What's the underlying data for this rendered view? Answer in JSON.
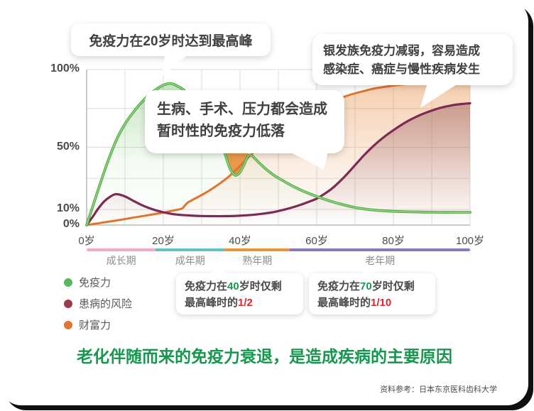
{
  "bubbles": {
    "peak": {
      "text": "免疫力在20岁时达到最高峰"
    },
    "senior": {
      "line1": "银发族免疫力减弱，容易造成",
      "line2": "感染症、癌症与慢性疾病发生"
    },
    "temporary": {
      "line1": "生病、手术、压力都会造成",
      "line2": "暂时性的免疫力低落"
    }
  },
  "axis": {
    "y_ticks": [
      "100%",
      "50%",
      "10%",
      "0%"
    ],
    "x_ticks": [
      "0岁",
      "20岁",
      "40岁",
      "60岁",
      "80岁",
      "100岁"
    ]
  },
  "periods": [
    {
      "label": "成长期",
      "from": 0,
      "to": 18,
      "color": "#f2a8c6"
    },
    {
      "label": "成年期",
      "from": 18,
      "to": 36,
      "color": "#5bc6c8"
    },
    {
      "label": "熟年期",
      "from": 36,
      "to": 53,
      "color": "#ef913c"
    },
    {
      "label": "老年期",
      "from": 53,
      "to": 100,
      "color": "#8679c0"
    }
  ],
  "legend": [
    {
      "label": "免疫力",
      "color": "#5cb85c"
    },
    {
      "label": "患病的风险",
      "color": "#9e3a4e"
    },
    {
      "label": "财富力",
      "color": "#e07733"
    }
  ],
  "callouts": [
    {
      "parts": [
        "免疫力在",
        "40",
        "岁时仅剩"
      ],
      "line2": [
        "最高峰时的",
        "1/2"
      ]
    },
    {
      "parts": [
        "免疫力在",
        "70",
        "岁时仅剩"
      ],
      "line2": [
        "最高峰时的",
        "1/10"
      ]
    }
  ],
  "headline": "老化伴随而来的免疫力衰退，是造成疾病的主要原因",
  "source": "资料参考：日本东京医科齿科大学",
  "colors": {
    "headline_green": "#13984d",
    "accent_green": "#169a4d",
    "accent_red": "#e1242a",
    "card_shadow": "#0f0f0f"
  },
  "chart_data": {
    "type": "line",
    "x_unit": "岁",
    "x_range": [
      0,
      100
    ],
    "y_range": [
      0,
      100
    ],
    "x_tick_values": [
      0,
      20,
      40,
      60,
      80,
      100
    ],
    "y_tick_values": [
      100,
      50,
      10,
      0
    ],
    "grid": true,
    "x_gridlines_every": 10,
    "y_gridlines_pct": [
      100,
      75,
      50,
      30,
      10,
      0
    ],
    "legend_position": "bottom-left",
    "notch": {
      "series": "immunity",
      "from_age": 34,
      "to_age": 42.8,
      "fill": "#e78e37",
      "opacity": 0.9
    },
    "series": [
      {
        "id": "immunity",
        "name": "免疫力",
        "color": "#53ad49",
        "points": [
          [
            0,
            0
          ],
          [
            2,
            15
          ],
          [
            4,
            30
          ],
          [
            6,
            44
          ],
          [
            8,
            56
          ],
          [
            10,
            65
          ],
          [
            12,
            72
          ],
          [
            14,
            78
          ],
          [
            16,
            83
          ],
          [
            18,
            87
          ],
          [
            20,
            90
          ],
          [
            22,
            91
          ],
          [
            24,
            89
          ],
          [
            26,
            85.5
          ],
          [
            28,
            80.5
          ],
          [
            30,
            74
          ],
          [
            32,
            66.5
          ],
          [
            34,
            58.5
          ],
          [
            35.2,
            52
          ],
          [
            36.2,
            45
          ],
          [
            37.2,
            37.5
          ],
          [
            38.2,
            33
          ],
          [
            39,
            32
          ],
          [
            40,
            34
          ],
          [
            41,
            38.5
          ],
          [
            42,
            44
          ],
          [
            42.8,
            45
          ],
          [
            43.6,
            43.5
          ],
          [
            45,
            40
          ],
          [
            47,
            35.5
          ],
          [
            49,
            31.8
          ],
          [
            51,
            28.8
          ],
          [
            53,
            26
          ],
          [
            55,
            23.5
          ],
          [
            57,
            21.3
          ],
          [
            59,
            19.3
          ],
          [
            61,
            17.5
          ],
          [
            64,
            15
          ],
          [
            67,
            13
          ],
          [
            70,
            11.3
          ],
          [
            73,
            10.2
          ],
          [
            76,
            9.4
          ],
          [
            80,
            8.8
          ],
          [
            84,
            8.5
          ],
          [
            88,
            8.3
          ],
          [
            92,
            8.2
          ],
          [
            96,
            8.2
          ],
          [
            100,
            8.2
          ]
        ]
      },
      {
        "id": "disease-risk",
        "name": "患病的风险",
        "color": "#7d2a55",
        "points": [
          [
            0,
            0
          ],
          [
            1.5,
            5
          ],
          [
            3,
            10.5
          ],
          [
            4.5,
            15
          ],
          [
            6,
            18
          ],
          [
            7.5,
            19.8
          ],
          [
            9,
            19.3
          ],
          [
            10.5,
            17.8
          ],
          [
            12,
            15.8
          ],
          [
            14,
            13.3
          ],
          [
            16,
            11.2
          ],
          [
            18,
            9.5
          ],
          [
            20,
            8.2
          ],
          [
            22,
            7.2
          ],
          [
            24,
            6.6
          ],
          [
            27,
            6.1
          ],
          [
            30,
            5.8
          ],
          [
            33,
            5.7
          ],
          [
            36,
            5.7
          ],
          [
            39,
            5.9
          ],
          [
            42,
            6.3
          ],
          [
            45,
            7
          ],
          [
            48,
            8
          ],
          [
            50,
            9
          ],
          [
            52,
            10.2
          ],
          [
            54,
            11.6
          ],
          [
            56,
            13.2
          ],
          [
            58,
            15
          ],
          [
            60,
            17
          ],
          [
            62,
            20
          ],
          [
            64,
            23.5
          ],
          [
            66,
            28
          ],
          [
            68,
            33
          ],
          [
            70,
            38.5
          ],
          [
            72,
            44
          ],
          [
            74,
            49
          ],
          [
            76,
            53.5
          ],
          [
            78,
            57.5
          ],
          [
            80,
            61
          ],
          [
            82,
            64.3
          ],
          [
            84,
            67.2
          ],
          [
            86,
            69.7
          ],
          [
            88,
            71.8
          ],
          [
            90,
            73.6
          ],
          [
            92,
            75.2
          ],
          [
            94,
            76.4
          ],
          [
            96,
            77.3
          ],
          [
            98,
            77.9
          ],
          [
            100,
            78.3
          ]
        ]
      },
      {
        "id": "wealth",
        "name": "财富力",
        "color": "#e0742c",
        "points": [
          [
            0,
            0
          ],
          [
            4,
            1.5
          ],
          [
            8,
            3
          ],
          [
            12,
            4.7
          ],
          [
            16,
            6.3
          ],
          [
            20,
            8
          ],
          [
            22,
            9
          ],
          [
            24,
            10
          ],
          [
            25,
            10.8
          ],
          [
            25.6,
            12.5
          ],
          [
            26.4,
            14.5
          ],
          [
            27.5,
            16
          ],
          [
            29,
            18
          ],
          [
            31,
            20.7
          ],
          [
            33,
            23.8
          ],
          [
            35,
            27.2
          ],
          [
            37,
            31
          ],
          [
            39,
            35.5
          ],
          [
            41,
            40.5
          ],
          [
            43,
            45.5
          ],
          [
            45,
            50
          ],
          [
            48,
            56
          ],
          [
            51,
            61.5
          ],
          [
            54,
            66.5
          ],
          [
            57,
            71
          ],
          [
            60,
            75
          ],
          [
            63,
            78.5
          ],
          [
            66,
            81.5
          ],
          [
            69,
            84
          ],
          [
            72,
            86
          ],
          [
            75,
            87.8
          ],
          [
            78,
            89
          ],
          [
            81,
            90
          ],
          [
            84,
            90.7
          ],
          [
            87,
            91.1
          ],
          [
            90,
            91.4
          ],
          [
            94,
            91.6
          ],
          [
            100,
            91.8
          ]
        ]
      }
    ]
  }
}
